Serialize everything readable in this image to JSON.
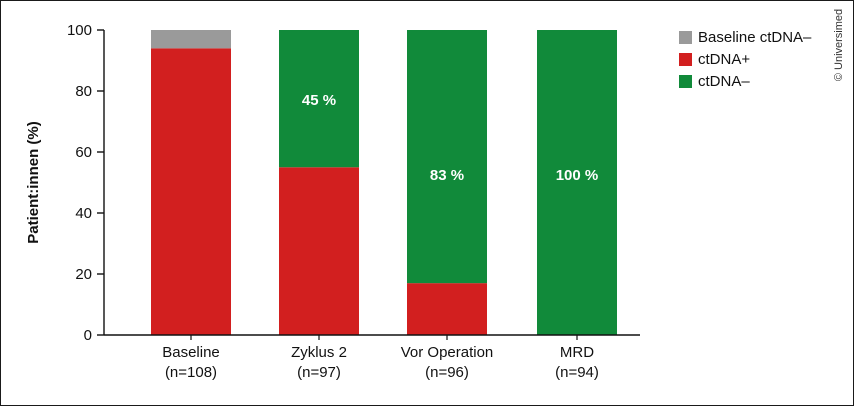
{
  "chart_data": {
    "type": "bar",
    "stacked": true,
    "percent": true,
    "categories": [
      "Baseline",
      "Zyklus 2",
      "Vor Operation",
      "MRD"
    ],
    "category_n": [
      "(n=108)",
      "(n=97)",
      "(n=96)",
      "(n=94)"
    ],
    "series": [
      {
        "name": "ctDNA+",
        "color": "#d21f1f",
        "values": [
          94,
          55,
          17,
          0
        ]
      },
      {
        "name": "ctDNA–",
        "color": "#118a3a",
        "values": [
          0,
          45,
          83,
          100
        ]
      },
      {
        "name": "Baseline ctDNA–",
        "color": "#9a9a9a",
        "values": [
          6,
          0,
          0,
          0
        ]
      }
    ],
    "legend_order": [
      "Baseline ctDNA–",
      "ctDNA+",
      "ctDNA–"
    ],
    "legend_position": "top-right",
    "data_labels": [
      {
        "category": "Zyklus 2",
        "text": "45 %"
      },
      {
        "category": "Vor Operation",
        "text": "83 %"
      },
      {
        "category": "MRD",
        "text": "100 %"
      }
    ],
    "ylabel": "Patient:innen (%)",
    "ylim": [
      0,
      100
    ],
    "yticks": [
      0,
      20,
      40,
      60,
      80,
      100
    ],
    "grid": false
  },
  "copyright": "© Universimed"
}
